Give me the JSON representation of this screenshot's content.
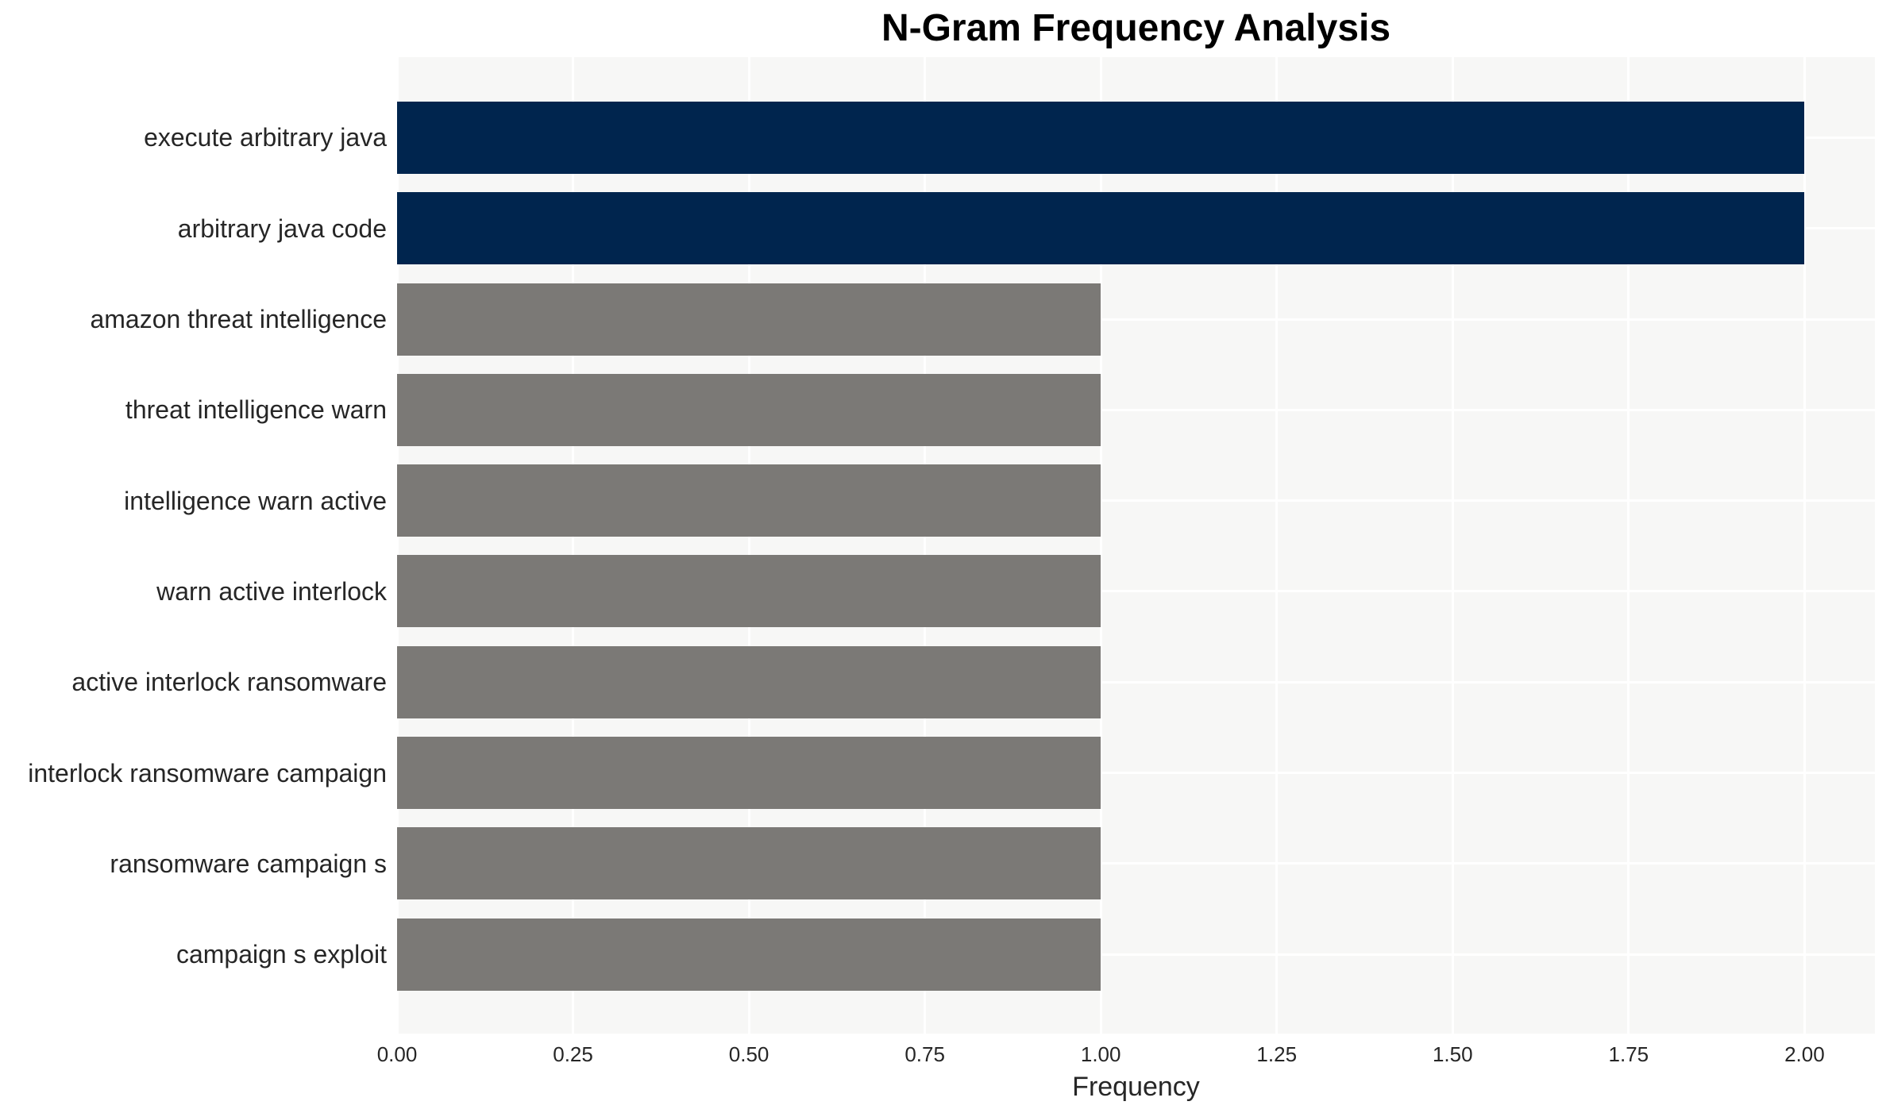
{
  "chart_data": {
    "type": "bar",
    "orientation": "horizontal",
    "title": "N-Gram Frequency Analysis",
    "xlabel": "Frequency",
    "ylabel": "",
    "categories": [
      "execute arbitrary java",
      "arbitrary java code",
      "amazon threat intelligence",
      "threat intelligence warn",
      "intelligence warn active",
      "warn active interlock",
      "active interlock ransomware",
      "interlock ransomware campaign",
      "ransomware campaign s",
      "campaign s exploit"
    ],
    "values": [
      2,
      2,
      1,
      1,
      1,
      1,
      1,
      1,
      1,
      1
    ],
    "bar_colors": [
      "#00254e",
      "#00254e",
      "#7b7976",
      "#7b7976",
      "#7b7976",
      "#7b7976",
      "#7b7976",
      "#7b7976",
      "#7b7976",
      "#7b7976"
    ],
    "xlim": [
      0,
      2.1
    ],
    "xticks": [
      0,
      0.25,
      0.5,
      0.75,
      1.0,
      1.25,
      1.5,
      1.75,
      2.0
    ],
    "xtick_labels": [
      "0.00",
      "0.25",
      "0.50",
      "0.75",
      "1.00",
      "1.25",
      "1.50",
      "1.75",
      "2.00"
    ],
    "grid": true,
    "legend_position": "none"
  },
  "colors": {
    "bar_high": "#00254e",
    "bar_low": "#7b7976",
    "plot_background": "#f7f7f6",
    "gridline": "#ffffff",
    "title_text": "#000000",
    "label_text": "#262626",
    "figure_background": "#ffffff"
  }
}
